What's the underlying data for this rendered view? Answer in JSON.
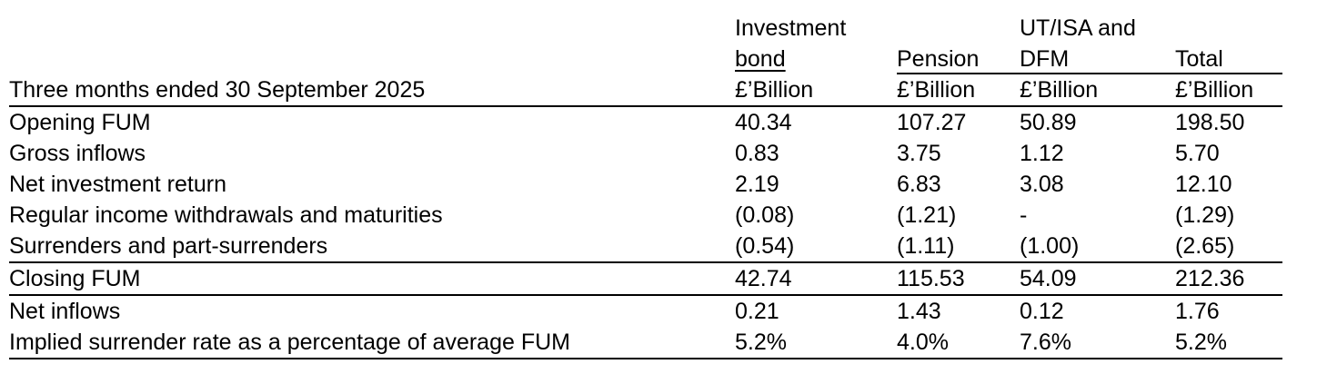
{
  "table": {
    "title": "Three months ended 30 September 2025",
    "columns": [
      {
        "line1": "Investment",
        "line2": "bond",
        "unit": "£’Billion"
      },
      {
        "line1": "",
        "line2": "Pension",
        "unit": "£’Billion"
      },
      {
        "line1": "UT/ISA and",
        "line2": "DFM",
        "unit": "£’Billion"
      },
      {
        "line1": "",
        "line2": "Total",
        "unit": "£’Billion"
      }
    ],
    "rows": [
      {
        "label": "Opening FUM",
        "values": [
          "40.34",
          "107.27",
          "50.89",
          "198.50"
        ]
      },
      {
        "label": "Gross inflows",
        "values": [
          "0.83",
          "3.75",
          "1.12",
          "5.70"
        ]
      },
      {
        "label": "Net investment return",
        "values": [
          "2.19",
          "6.83",
          "3.08",
          "12.10"
        ]
      },
      {
        "label": "Regular income withdrawals and maturities",
        "values": [
          "(0.08)",
          "(1.21)",
          "-",
          "(1.29)"
        ]
      },
      {
        "label": "Surrenders and part-surrenders",
        "values": [
          "(0.54)",
          "(1.11)",
          "(1.00)",
          "(2.65)"
        ]
      },
      {
        "label": "Closing FUM",
        "values": [
          "42.74",
          "115.53",
          "54.09",
          "212.36"
        ]
      },
      {
        "label": "Net inflows",
        "values": [
          "0.21",
          "1.43",
          "0.12",
          "1.76"
        ]
      },
      {
        "label": "Implied surrender rate as a percentage of average FUM",
        "values": [
          "5.2%",
          "4.0%",
          "7.6%",
          "5.2%"
        ]
      }
    ]
  }
}
